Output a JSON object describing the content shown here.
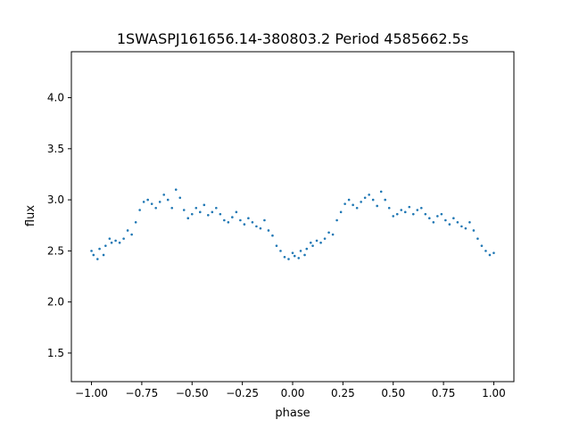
{
  "chart_data": {
    "type": "scatter",
    "title": "1SWASPJ161656.14-380803.2 Period 4585662.5s",
    "xlabel": "phase",
    "ylabel": "flux",
    "xlim": [
      -1.1,
      1.1
    ],
    "ylim": [
      1.22,
      4.45
    ],
    "xticks": [
      -1.0,
      -0.75,
      -0.5,
      -0.25,
      0.0,
      0.25,
      0.5,
      0.75,
      1.0
    ],
    "xtick_labels": [
      "−1.00",
      "−0.75",
      "−0.50",
      "−0.25",
      "0.00",
      "0.25",
      "0.50",
      "0.75",
      "1.00"
    ],
    "yticks": [
      1.5,
      2.0,
      2.5,
      3.0,
      3.5,
      4.0
    ],
    "ytick_labels": [
      "1.5",
      "2.0",
      "2.5",
      "3.0",
      "3.5",
      "4.0"
    ],
    "grid": false,
    "legend": "none",
    "marker_color": "#1f77b4",
    "series": [
      {
        "x": [
          -1.0,
          -0.99,
          -0.97,
          -0.96,
          -0.94,
          -0.93,
          -0.91,
          -0.9,
          -0.88,
          -0.86,
          -0.84,
          -0.82,
          -0.8,
          -0.78,
          -0.76,
          -0.74,
          -0.72,
          -0.7,
          -0.68,
          -0.66,
          -0.64,
          -0.62,
          -0.6,
          -0.58,
          -0.56,
          -0.54,
          -0.52,
          -0.5,
          -0.48,
          -0.46,
          -0.44,
          -0.42,
          -0.4,
          -0.38,
          -0.36,
          -0.34,
          -0.32,
          -0.3,
          -0.28,
          -0.26,
          -0.24,
          -0.22,
          -0.2,
          -0.18,
          -0.16,
          -0.14,
          -0.12,
          -0.1,
          -0.08,
          -0.06,
          -0.04,
          -0.02,
          0.0,
          0.01,
          0.03,
          0.04,
          0.06,
          0.07,
          0.09,
          0.1,
          0.12,
          0.14,
          0.16,
          0.18,
          0.2,
          0.22,
          0.24,
          0.26,
          0.28,
          0.3,
          0.32,
          0.34,
          0.36,
          0.38,
          0.4,
          0.42,
          0.44,
          0.46,
          0.48,
          0.5,
          0.52,
          0.54,
          0.56,
          0.58,
          0.6,
          0.62,
          0.64,
          0.66,
          0.68,
          0.7,
          0.72,
          0.74,
          0.76,
          0.78,
          0.8,
          0.82,
          0.84,
          0.86,
          0.88,
          0.9,
          0.92,
          0.94,
          0.96,
          0.98,
          1.0
        ],
        "y": [
          2.5,
          2.46,
          2.42,
          2.52,
          2.46,
          2.55,
          2.62,
          2.58,
          2.6,
          2.58,
          2.62,
          2.7,
          2.66,
          2.78,
          2.9,
          2.98,
          3.0,
          2.96,
          2.92,
          2.98,
          3.05,
          3.0,
          2.92,
          3.1,
          3.02,
          2.9,
          2.82,
          2.86,
          2.92,
          2.88,
          2.95,
          2.85,
          2.88,
          2.92,
          2.86,
          2.8,
          2.78,
          2.83,
          2.88,
          2.8,
          2.76,
          2.82,
          2.78,
          2.74,
          2.72,
          2.8,
          2.7,
          2.65,
          2.55,
          2.5,
          2.44,
          2.42,
          2.48,
          2.45,
          2.43,
          2.5,
          2.46,
          2.52,
          2.58,
          2.55,
          2.6,
          2.58,
          2.62,
          2.68,
          2.66,
          2.8,
          2.88,
          2.96,
          3.0,
          2.95,
          2.92,
          2.98,
          3.02,
          3.05,
          3.0,
          2.94,
          3.08,
          3.0,
          2.92,
          2.84,
          2.86,
          2.9,
          2.88,
          2.93,
          2.86,
          2.9,
          2.92,
          2.86,
          2.82,
          2.78,
          2.84,
          2.86,
          2.8,
          2.76,
          2.82,
          2.78,
          2.74,
          2.72,
          2.78,
          2.7,
          2.62,
          2.55,
          2.5,
          2.46,
          2.48
        ]
      }
    ],
    "annotations": []
  }
}
